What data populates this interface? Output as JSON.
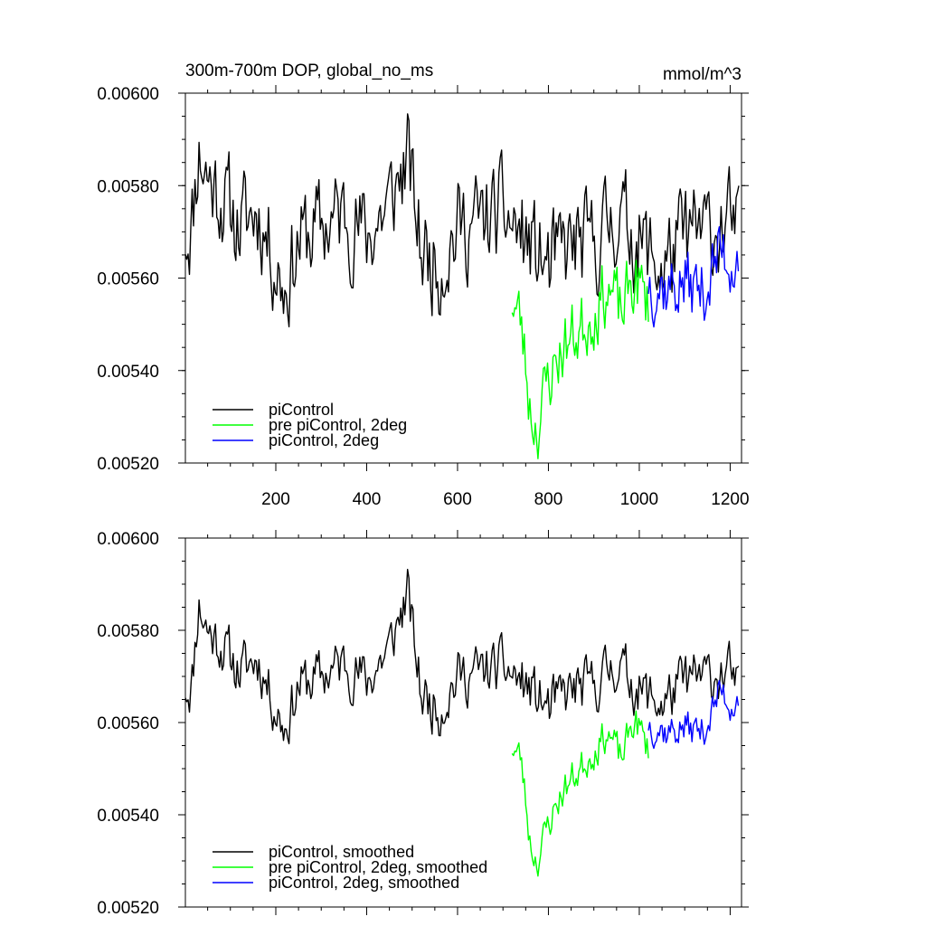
{
  "chart_data": [
    {
      "type": "line",
      "title": "300m-700m DOP, global_no_ms",
      "units": "mmol/m^3",
      "xlim": [
        1,
        1225
      ],
      "ylim": [
        0.0052,
        0.006
      ],
      "xticks": [
        200,
        400,
        600,
        800,
        1000,
        1200
      ],
      "xtick_labels": [
        "200",
        "400",
        "600",
        "800",
        "1000",
        "1200"
      ],
      "yticks": [
        0.0052,
        0.0054,
        0.0056,
        0.0058,
        0.006
      ],
      "ytick_labels": [
        "0.00520",
        "0.00540",
        "0.00560",
        "0.00580",
        "0.00600"
      ],
      "legend_position": "bottom-left",
      "series": [
        {
          "name": "piControl",
          "color": "#000000",
          "x_start": 1,
          "x_end": 1220,
          "anchors": [
            [
              1,
              0.0057
            ],
            [
              15,
              0.00572
            ],
            [
              30,
              0.00588
            ],
            [
              50,
              0.00582
            ],
            [
              80,
              0.00578
            ],
            [
              120,
              0.00571
            ],
            [
              160,
              0.00575
            ],
            [
              200,
              0.00563
            ],
            [
              220,
              0.00558
            ],
            [
              250,
              0.00568
            ],
            [
              300,
              0.00571
            ],
            [
              350,
              0.00574
            ],
            [
              400,
              0.00569
            ],
            [
              450,
              0.00576
            ],
            [
              490,
              0.00586
            ],
            [
              520,
              0.00566
            ],
            [
              560,
              0.00563
            ],
            [
              600,
              0.00571
            ],
            [
              650,
              0.00572
            ],
            [
              700,
              0.00574
            ],
            [
              750,
              0.00568
            ],
            [
              800,
              0.00562
            ],
            [
              850,
              0.00567
            ],
            [
              900,
              0.00567
            ],
            [
              950,
              0.00574
            ],
            [
              1000,
              0.00568
            ],
            [
              1050,
              0.00562
            ],
            [
              1100,
              0.00569
            ],
            [
              1150,
              0.0057
            ],
            [
              1200,
              0.00572
            ],
            [
              1220,
              0.00567
            ]
          ],
          "noise": 0.00011,
          "seed": 11
        },
        {
          "name": "pre piControl, 2deg",
          "color": "#00ff00",
          "x_start": 720,
          "x_end": 1020,
          "anchors": [
            [
              720,
              0.00556
            ],
            [
              740,
              0.0055
            ],
            [
              760,
              0.00532
            ],
            [
              775,
              0.00528
            ],
            [
              800,
              0.00538
            ],
            [
              830,
              0.00545
            ],
            [
              870,
              0.00549
            ],
            [
              900,
              0.00553
            ],
            [
              930,
              0.00558
            ],
            [
              960,
              0.00552
            ],
            [
              990,
              0.0056
            ],
            [
              1020,
              0.00554
            ]
          ],
          "noise": 8e-05,
          "seed": 23
        },
        {
          "name": "piControl, 2deg",
          "color": "#0000ff",
          "x_start": 1020,
          "x_end": 1220,
          "anchors": [
            [
              1020,
              0.0056
            ],
            [
              1060,
              0.00558
            ],
            [
              1100,
              0.00559
            ],
            [
              1140,
              0.00557
            ],
            [
              1180,
              0.00566
            ],
            [
              1200,
              0.00564
            ],
            [
              1220,
              0.00566
            ]
          ],
          "noise": 8e-05,
          "seed": 37
        }
      ]
    },
    {
      "type": "line",
      "title": "",
      "units": "",
      "xlim": [
        1,
        1225
      ],
      "ylim": [
        0.0052,
        0.006
      ],
      "xticks": [
        200,
        400,
        600,
        800,
        1000,
        1200
      ],
      "xtick_labels": [],
      "yticks": [
        0.0052,
        0.0054,
        0.0056,
        0.0058,
        0.006
      ],
      "ytick_labels": [
        "0.00520",
        "0.00540",
        "0.00560",
        "0.00580",
        "0.00600"
      ],
      "legend_position": "bottom-left",
      "series": [
        {
          "name": "piControl, smoothed",
          "color": "#000000",
          "x_start": 1,
          "x_end": 1220,
          "anchors": [
            [
              1,
              0.00568
            ],
            [
              15,
              0.00568
            ],
            [
              30,
              0.00586
            ],
            [
              50,
              0.0058
            ],
            [
              80,
              0.00577
            ],
            [
              120,
              0.00571
            ],
            [
              160,
              0.00574
            ],
            [
              200,
              0.00563
            ],
            [
              220,
              0.00559
            ],
            [
              250,
              0.00568
            ],
            [
              300,
              0.0057
            ],
            [
              350,
              0.00573
            ],
            [
              400,
              0.00569
            ],
            [
              450,
              0.00576
            ],
            [
              490,
              0.00588
            ],
            [
              520,
              0.00566
            ],
            [
              560,
              0.00563
            ],
            [
              600,
              0.0057
            ],
            [
              650,
              0.00571
            ],
            [
              700,
              0.00572
            ],
            [
              750,
              0.00568
            ],
            [
              800,
              0.00563
            ],
            [
              850,
              0.00567
            ],
            [
              900,
              0.00568
            ],
            [
              950,
              0.00573
            ],
            [
              1000,
              0.00567
            ],
            [
              1050,
              0.00564
            ],
            [
              1100,
              0.00569
            ],
            [
              1150,
              0.0057
            ],
            [
              1200,
              0.00571
            ],
            [
              1220,
              0.00565
            ]
          ],
          "noise": 6e-05,
          "seed": 11
        },
        {
          "name": "pre piControl, 2deg, smoothed",
          "color": "#00ff00",
          "x_start": 720,
          "x_end": 1020,
          "anchors": [
            [
              720,
              0.00555
            ],
            [
              740,
              0.00552
            ],
            [
              760,
              0.00534
            ],
            [
              775,
              0.0053
            ],
            [
              800,
              0.00538
            ],
            [
              830,
              0.00545
            ],
            [
              870,
              0.0055
            ],
            [
              900,
              0.00554
            ],
            [
              930,
              0.00558
            ],
            [
              960,
              0.00552
            ],
            [
              990,
              0.00561
            ],
            [
              1020,
              0.00554
            ]
          ],
          "noise": 4e-05,
          "seed": 23
        },
        {
          "name": "piControl, 2deg, smoothed",
          "color": "#0000ff",
          "x_start": 1020,
          "x_end": 1220,
          "anchors": [
            [
              1020,
              0.0056
            ],
            [
              1060,
              0.00558
            ],
            [
              1100,
              0.00559
            ],
            [
              1140,
              0.00558
            ],
            [
              1180,
              0.00567
            ],
            [
              1200,
              0.00564
            ],
            [
              1220,
              0.00566
            ]
          ],
          "noise": 4e-05,
          "seed": 37
        }
      ]
    }
  ]
}
